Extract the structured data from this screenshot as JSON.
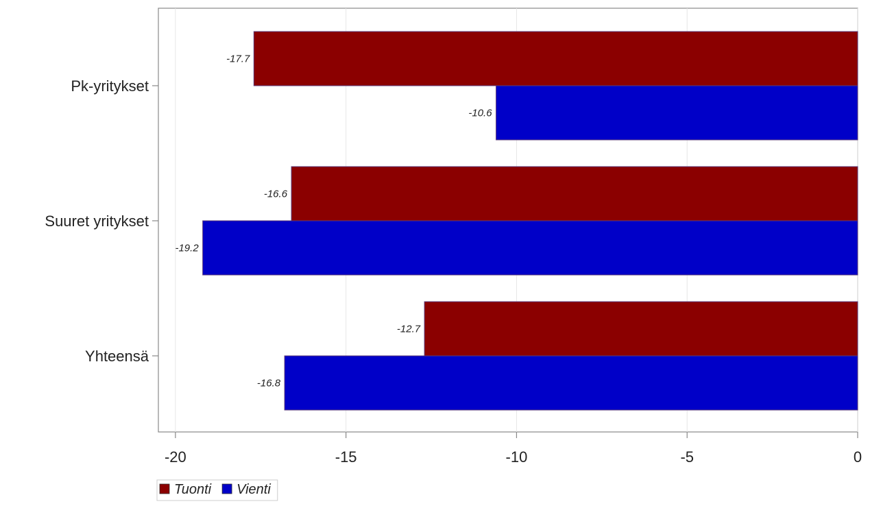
{
  "chart_data": {
    "type": "bar",
    "orientation": "horizontal",
    "categories": [
      "Pk-yritykset",
      "Suuret yritykset",
      "Yhteensä"
    ],
    "series": [
      {
        "name": "Tuonti",
        "color": "#8b0000",
        "values": [
          -17.7,
          -16.6,
          -12.7
        ]
      },
      {
        "name": "Vienti",
        "color": "#0000c8",
        "values": [
          -10.6,
          -19.2,
          -16.8
        ]
      }
    ],
    "data_labels": {
      "Tuonti": [
        "-17.7",
        "-16.6",
        "-12.7"
      ],
      "Vienti": [
        "-10.6",
        "-19.2",
        "-16.8"
      ]
    },
    "xlim": [
      -20.5,
      0
    ],
    "x_ticks": [
      -20,
      -15,
      -10,
      -5,
      0
    ],
    "x_tick_labels": [
      "-20",
      "-15",
      "-10",
      "-5",
      "0"
    ],
    "grid": "vertical",
    "legend_position": "bottom-left"
  }
}
